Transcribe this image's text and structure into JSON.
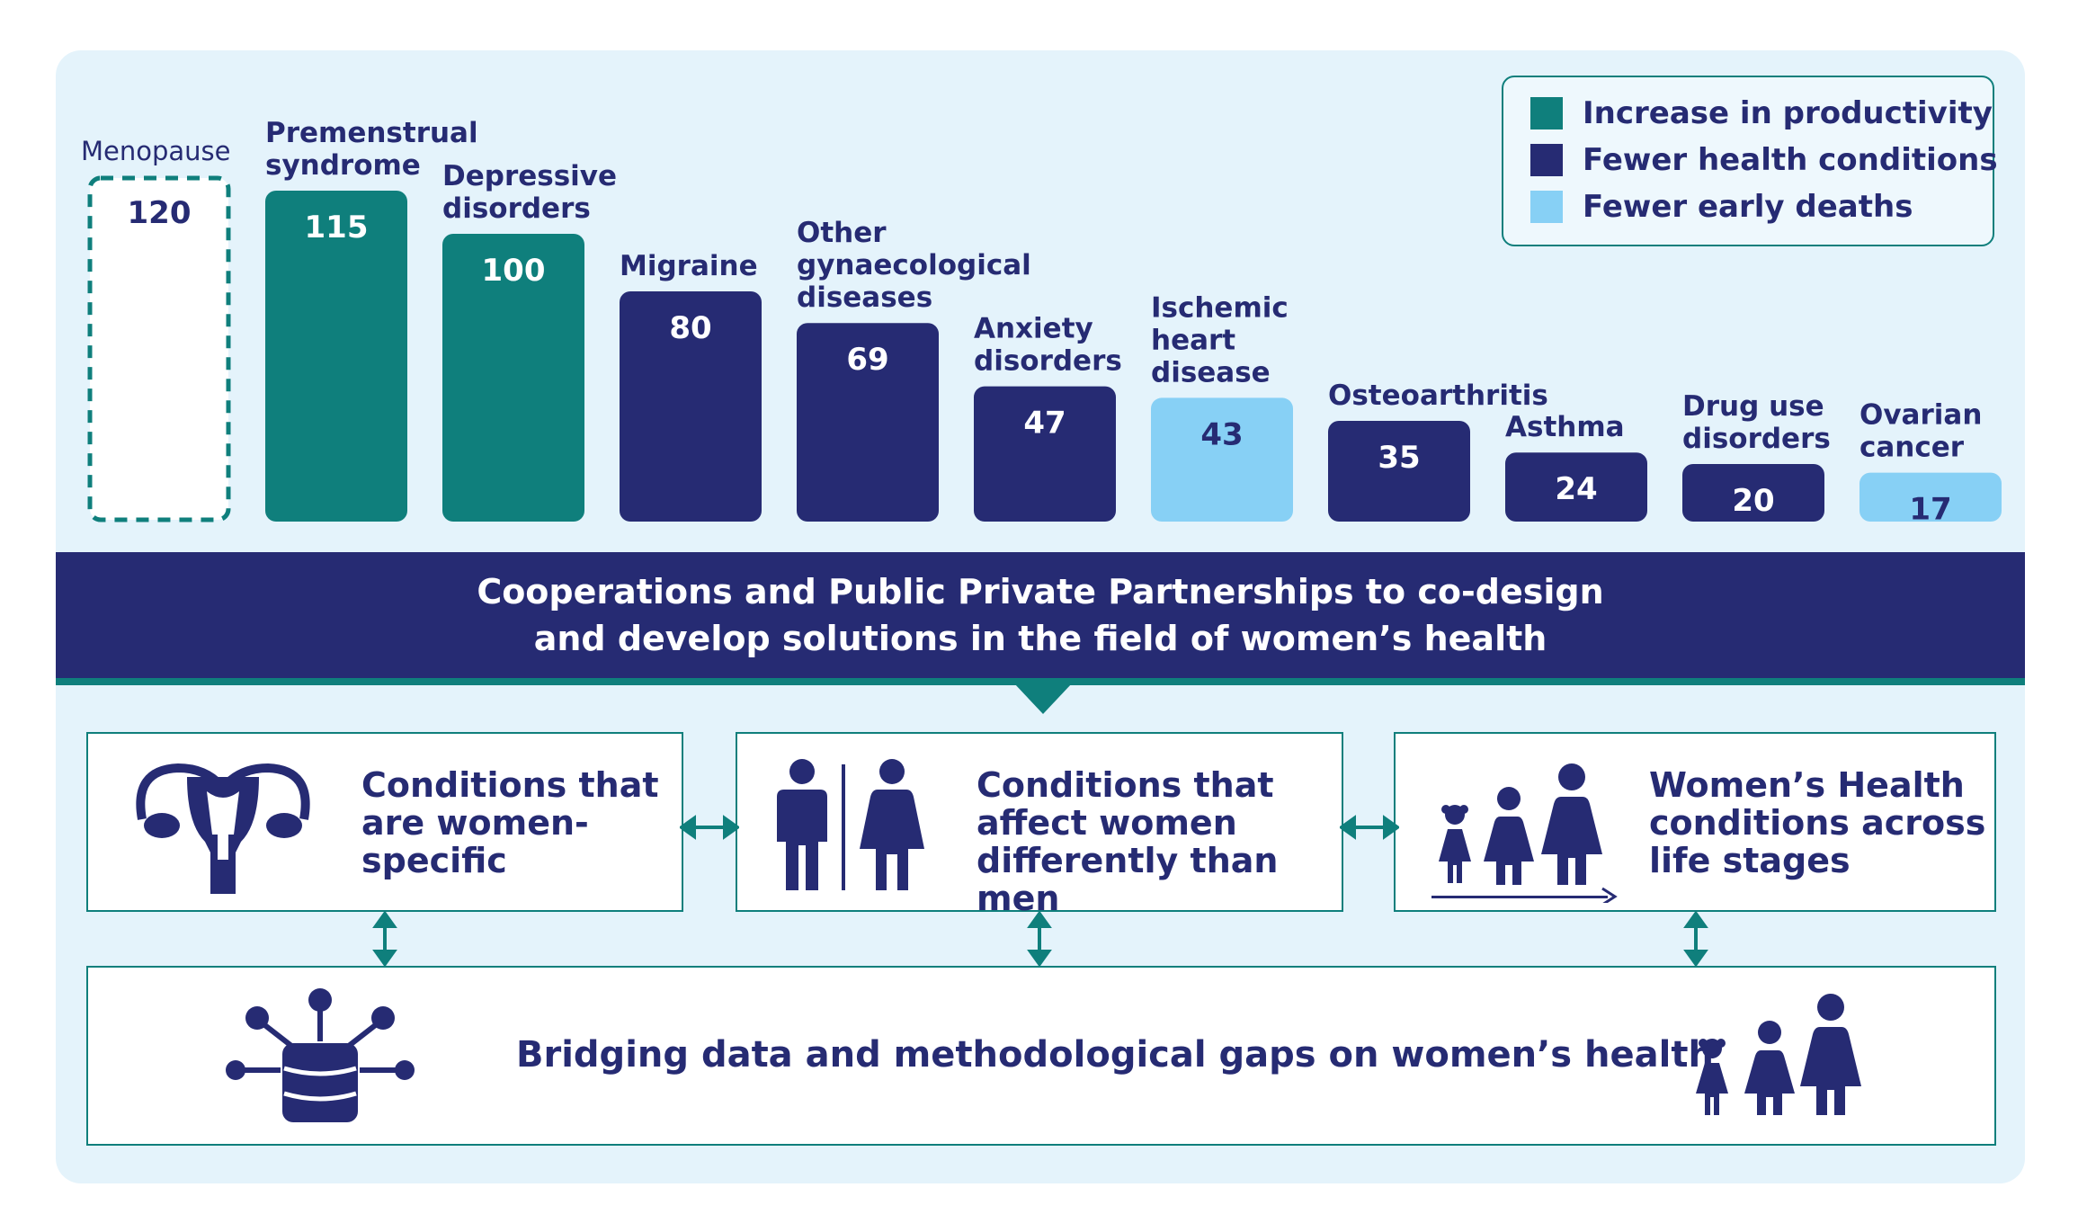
{
  "chart_data": {
    "type": "bar",
    "categories": [
      "Menopause",
      "Premenstrual syndrome",
      "Depressive disorders",
      "Migraine",
      "Other gynaecological diseases",
      "Anxiety disorders",
      "Ischemic heart disease",
      "Osteoarthritis",
      "Asthma",
      "Drug use disorders",
      "Ovarian cancer"
    ],
    "label_lines": [
      [
        "Menopause"
      ],
      [
        "Premenstrual",
        "syndrome"
      ],
      [
        "Depressive",
        "disorders"
      ],
      [
        "Migraine"
      ],
      [
        "Other",
        "gynaecological",
        "diseases"
      ],
      [
        "Anxiety",
        "disorders"
      ],
      [
        "Ischemic",
        "heart",
        "disease"
      ],
      [
        "Osteoarthritis"
      ],
      [
        "Asthma"
      ],
      [
        "Drug use",
        "disorders"
      ],
      [
        "Ovarian",
        "cancer"
      ]
    ],
    "values": [
      120,
      115,
      100,
      80,
      69,
      47,
      43,
      35,
      24,
      20,
      17
    ],
    "value_labels": [
      "120",
      "115",
      "100",
      "80",
      "69",
      "47",
      "43",
      "35",
      "24",
      "20",
      "17"
    ],
    "categories_type": [
      "outline",
      "productivity",
      "productivity",
      "health",
      "health",
      "health",
      "deaths",
      "health",
      "health",
      "health",
      "deaths"
    ],
    "series": [
      {
        "name": "Increase in productivity",
        "color": "#0f7f7c"
      },
      {
        "name": "Fewer health conditions",
        "color": "#262b73"
      },
      {
        "name": "Fewer early deaths",
        "color": "#87d0f5"
      }
    ],
    "legend_position": "top-right",
    "grid": false
  },
  "legend": {
    "items": [
      "Increase in productivity",
      "Fewer health conditions",
      "Fewer early deaths"
    ]
  },
  "banner": {
    "text": "Cooperations and Public Private Partnerships to co-design and develop solutions in the field of women’s health"
  },
  "boxes": {
    "specific": "Conditions that are women-specific",
    "different": "Conditions that affect women differently than men",
    "stages": "Women’s Health conditions across life stages",
    "data": "Bridging data and methodological gaps on women’s health"
  },
  "icons": [
    "uterus-icon",
    "man-woman-icon",
    "life-stages-icon",
    "database-network-icon",
    "family-icon",
    "double-arrow-icon"
  ]
}
